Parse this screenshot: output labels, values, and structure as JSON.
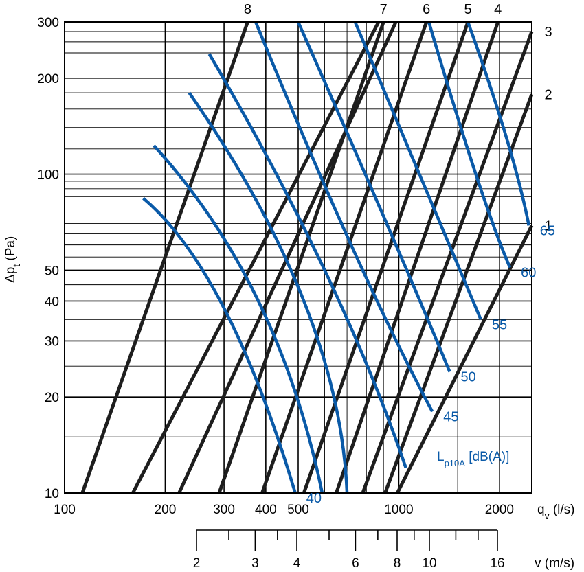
{
  "chart_data": {
    "type": "line",
    "x_axis": {
      "label_main": "q",
      "label_sub": "v",
      "label_unit": " (l/s)",
      "scale": "log",
      "range": [
        100,
        2500
      ],
      "ticks": [
        {
          "value": 100,
          "label": "100"
        },
        {
          "value": 200,
          "label": "200"
        },
        {
          "value": 300,
          "label": "300"
        },
        {
          "value": 400,
          "label": "400"
        },
        {
          "value": 500,
          "label": "500"
        },
        {
          "value": 1000,
          "label": "1000"
        },
        {
          "value": 2000,
          "label": "2000"
        }
      ]
    },
    "y_axis": {
      "label_main": "Δp",
      "label_sub": "t",
      "label_unit": " (Pa)",
      "scale": "log",
      "range": [
        10,
        300
      ],
      "ticks": [
        {
          "value": 10,
          "label": "10"
        },
        {
          "value": 20,
          "label": "20"
        },
        {
          "value": 30,
          "label": "30"
        },
        {
          "value": 40,
          "label": "40"
        },
        {
          "value": 50,
          "label": "50"
        },
        {
          "value": 100,
          "label": "100"
        },
        {
          "value": 200,
          "label": "200"
        },
        {
          "value": 300,
          "label": "300"
        }
      ]
    },
    "velocity_scale": {
      "label": "v (m/s)",
      "range": [
        2,
        16
      ],
      "ticks": [
        2,
        2.5,
        3,
        3.5,
        4,
        5,
        6,
        7,
        8,
        9,
        10,
        12,
        14,
        16
      ],
      "tick_labels": [
        {
          "value": 2,
          "label": "2"
        },
        {
          "value": 3,
          "label": "3"
        },
        {
          "value": 4,
          "label": "4"
        },
        {
          "value": 6,
          "label": "6"
        },
        {
          "value": 8,
          "label": "8"
        },
        {
          "value": 10,
          "label": "10"
        },
        {
          "value": 16,
          "label": "16"
        }
      ]
    },
    "grid": true,
    "series": [
      {
        "name": "1",
        "kind": "damper",
        "points": [
          [
            990,
            10
          ],
          [
            2500,
            69
          ]
        ]
      },
      {
        "name": "2",
        "kind": "damper",
        "points": [
          [
            910,
            10
          ],
          [
            2500,
            178
          ]
        ]
      },
      {
        "name": "3",
        "kind": "damper",
        "points": [
          [
            780,
            10
          ],
          [
            2500,
            280
          ]
        ]
      },
      {
        "name": "4",
        "kind": "damper",
        "points": [
          [
            650,
            10
          ],
          [
            1980,
            300
          ]
        ]
      },
      {
        "name": "5",
        "kind": "damper",
        "points": [
          [
            520,
            10
          ],
          [
            1610,
            300
          ]
        ]
      },
      {
        "name": "6",
        "kind": "damper",
        "points": [
          [
            390,
            10
          ],
          [
            1210,
            300
          ]
        ]
      },
      {
        "name": "7",
        "kind": "damper",
        "points": [
          [
            290,
            10
          ],
          [
            900,
            300
          ]
        ]
      },
      {
        "name": "8",
        "kind": "damper",
        "points": [
          [
            113,
            10
          ],
          [
            353,
            300
          ]
        ]
      },
      {
        "name": "",
        "kind": "damper",
        "points": [
          [
            160,
            10
          ],
          [
            870,
            300
          ]
        ]
      },
      {
        "name": "",
        "kind": "damper",
        "points": [
          [
            220,
            10
          ],
          [
            980,
            300
          ]
        ]
      }
    ],
    "sound_series": [
      {
        "name": "40",
        "points": [
          [
            172,
            84
          ],
          [
            300,
            38
          ],
          [
            490,
            10
          ]
        ]
      },
      {
        "name": "",
        "points": [
          [
            185,
            123
          ],
          [
            380,
            40
          ],
          [
            590,
            10
          ]
        ]
      },
      {
        "name": "",
        "points": [
          [
            236,
            180
          ],
          [
            520,
            40
          ],
          [
            700,
            10
          ]
        ]
      },
      {
        "name": "",
        "points": [
          [
            271,
            238
          ],
          [
            600,
            50
          ],
          [
            1050,
            12
          ]
        ]
      },
      {
        "name": "45",
        "points": [
          [
            373,
            300
          ],
          [
            720,
            60
          ],
          [
            1260,
            18
          ]
        ]
      },
      {
        "name": "50",
        "points": [
          [
            500,
            300
          ],
          [
            920,
            70
          ],
          [
            1420,
            24
          ]
        ]
      },
      {
        "name": "55",
        "points": [
          [
            740,
            300
          ],
          [
            1200,
            90
          ],
          [
            1760,
            35
          ]
        ]
      },
      {
        "name": "60",
        "points": [
          [
            1230,
            300
          ],
          [
            1700,
            100
          ],
          [
            2150,
            51
          ]
        ]
      },
      {
        "name": "65",
        "points": [
          [
            1610,
            300
          ],
          [
            2100,
            130
          ],
          [
            2450,
            69
          ]
        ]
      }
    ],
    "sound_legend": {
      "main": "L",
      "sub": "p10A",
      "rest": " [dB(A)]"
    }
  }
}
